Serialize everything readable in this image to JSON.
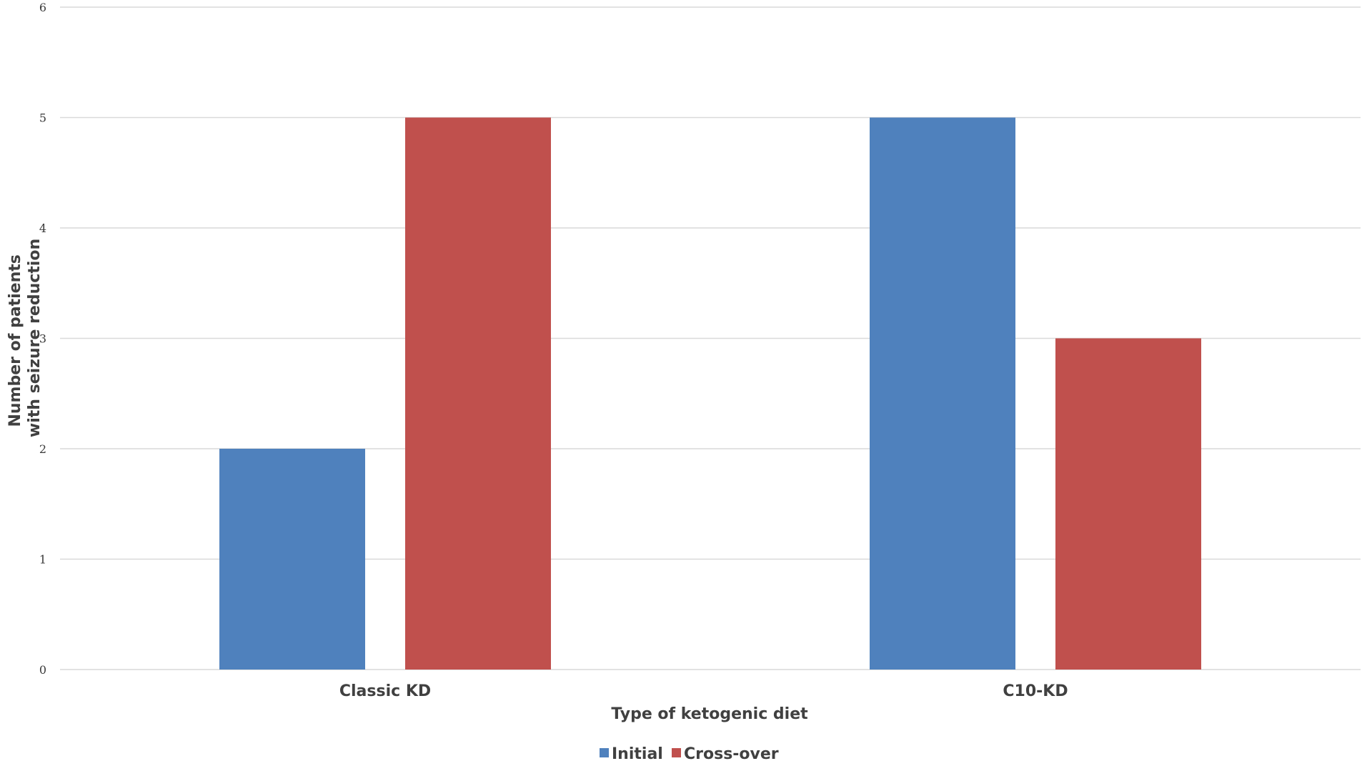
{
  "chart_data": {
    "type": "bar",
    "title": "",
    "xlabel": "Type of ketogenic diet",
    "ylabel_lines": [
      "Number of patients",
      "with seizure reduction"
    ],
    "categories": [
      "Classic KD",
      "C10-KD"
    ],
    "series": [
      {
        "name": "Initial",
        "values": [
          2,
          5
        ],
        "color": "#4f81bd"
      },
      {
        "name": "Cross-over",
        "values": [
          5,
          3
        ],
        "color": "#c0504d"
      }
    ],
    "ylim": [
      0,
      6
    ],
    "yticks": [
      0,
      1,
      2,
      3,
      4,
      5,
      6
    ],
    "grid": true,
    "legend_position": "bottom-center"
  }
}
